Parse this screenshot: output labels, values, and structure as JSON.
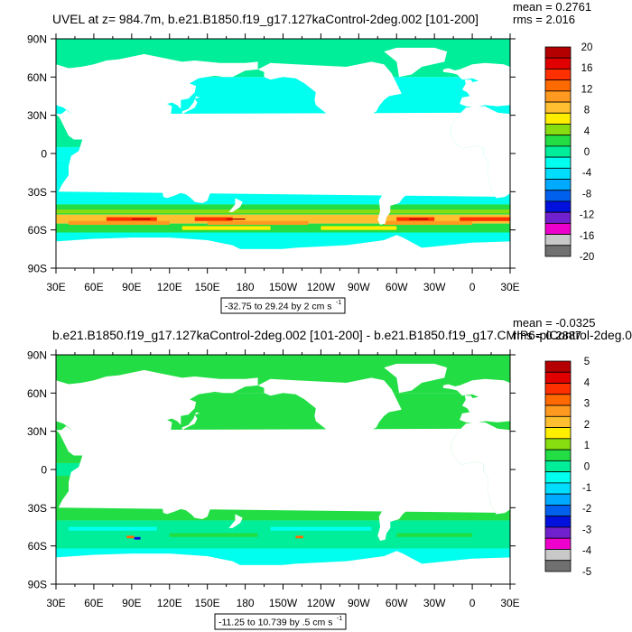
{
  "chart_data": [
    {
      "type": "heatmap",
      "title": "UVEL at z= 984.7m, b.e21.B1850.f19_g17.127kaControl-2deg.002 [101-200]",
      "mean_text": "mean = 0.2761",
      "rms_text": "rms = 2.016",
      "range_text": "-32.75 to 29.24 by 2 cm s",
      "range_sup": "-1",
      "lat_labels": [
        "90N",
        "60N",
        "30N",
        "0",
        "30S",
        "60S",
        "90S"
      ],
      "lon_labels": [
        "30E",
        "60E",
        "90E",
        "120E",
        "150E",
        "180",
        "150W",
        "120W",
        "90W",
        "60W",
        "30W",
        "0",
        "30E"
      ],
      "colorbar_labels": [
        "20",
        "16",
        "12",
        "8",
        "4",
        "0",
        "-4",
        "-8",
        "-12",
        "-16",
        "-20"
      ],
      "colorbar_colors": [
        "#b40000",
        "#e00000",
        "#ff3000",
        "#ff6a00",
        "#ff9a20",
        "#ffbf30",
        "#ffee00",
        "#88dd10",
        "#22dd44",
        "#00ee99",
        "#00ffee",
        "#00ddff",
        "#00aaff",
        "#0060ee",
        "#0010dd",
        "#7020cc",
        "#ee00cc",
        "#c8c8c8",
        "#707070"
      ],
      "ocean_bands": [
        {
          "lat_from": 90,
          "lat_to": 60,
          "color": "#00ee99"
        },
        {
          "lat_from": 60,
          "lat_to": 30,
          "color": "#00ffee"
        },
        {
          "lat_from": 30,
          "lat_to": 5,
          "color": "#00ee99"
        },
        {
          "lat_from": 5,
          "lat_to": -5,
          "color": "#00ffee"
        },
        {
          "lat_from": -5,
          "lat_to": -40,
          "color": "#00ffee"
        },
        {
          "lat_from": -40,
          "lat_to": -48,
          "color": "#22dd44"
        },
        {
          "lat_from": -48,
          "lat_to": -55,
          "color": "#ffbf30"
        },
        {
          "lat_from": -55,
          "lat_to": -62,
          "color": "#22dd44"
        },
        {
          "lat_from": -62,
          "lat_to": -75,
          "color": "#00ffee"
        }
      ]
    },
    {
      "type": "heatmap",
      "title": "b.e21.B1850.f19_g17.127kaControl-2deg.002 [101-200] - b.e21.B1850.f19_g17.CMIP6-piControl-2deg.0",
      "mean_text": "mean = -0.0325",
      "rms_text": "rms = 0.2887",
      "range_text": "-11.25 to 10.739 by .5 cm s",
      "range_sup": "-1",
      "lat_labels": [
        "90N",
        "60N",
        "30N",
        "0",
        "30S",
        "60S",
        "90S"
      ],
      "lon_labels": [
        "30E",
        "60E",
        "90E",
        "120E",
        "150E",
        "180",
        "150W",
        "120W",
        "90W",
        "60W",
        "30W",
        "0",
        "30E"
      ],
      "colorbar_labels": [
        "5",
        "4",
        "3",
        "2",
        "1",
        "0",
        "-1",
        "-2",
        "-3",
        "-4",
        "-5"
      ],
      "colorbar_colors": [
        "#b40000",
        "#e00000",
        "#ff3000",
        "#ff6a00",
        "#ff9a20",
        "#ffbf30",
        "#ffee00",
        "#88dd10",
        "#22dd44",
        "#00ee99",
        "#00ffee",
        "#00ddff",
        "#00aaff",
        "#0060ee",
        "#0010dd",
        "#7020cc",
        "#ee00cc",
        "#c8c8c8",
        "#707070"
      ],
      "ocean_bands": [
        {
          "lat_from": 90,
          "lat_to": 60,
          "color": "#22dd44"
        },
        {
          "lat_from": 60,
          "lat_to": 30,
          "color": "#22dd44"
        },
        {
          "lat_from": 30,
          "lat_to": 5,
          "color": "#22dd44"
        },
        {
          "lat_from": 5,
          "lat_to": -5,
          "color": "#00ee99"
        },
        {
          "lat_from": -5,
          "lat_to": -40,
          "color": "#22dd44"
        },
        {
          "lat_from": -40,
          "lat_to": -62,
          "color": "#00ee99"
        },
        {
          "lat_from": -62,
          "lat_to": -75,
          "color": "#00ffee"
        }
      ]
    }
  ]
}
